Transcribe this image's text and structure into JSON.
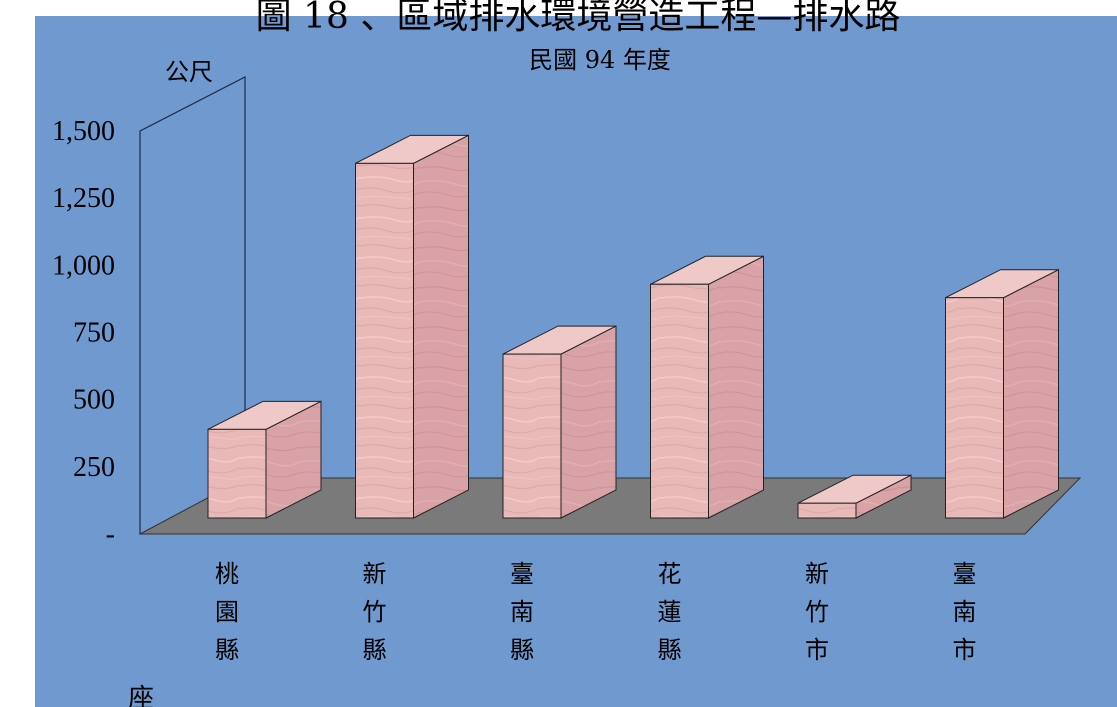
{
  "chart_data": {
    "type": "bar",
    "title": "圖 18 、區域排水環境營造工程—排水路",
    "subtitle": "民國 94 年度",
    "unit_label": "公尺",
    "categories": [
      "桃園縣",
      "新竹縣",
      "臺南縣",
      "花蓮縣",
      "新竹市",
      "臺南市"
    ],
    "values": [
      330,
      1320,
      610,
      870,
      55,
      820
    ],
    "y_ticks": [
      "-",
      "250",
      "500",
      "750",
      "1,000",
      "1,250",
      "1,500"
    ],
    "ylim": [
      0,
      1500
    ],
    "footnote": "座",
    "colors": {
      "background": "#7099CF",
      "floor": "#7A7A7A",
      "bar_front": "#E9B9B8",
      "bar_side": "#D9A2A6",
      "bar_top": "#EFC9C8"
    }
  }
}
